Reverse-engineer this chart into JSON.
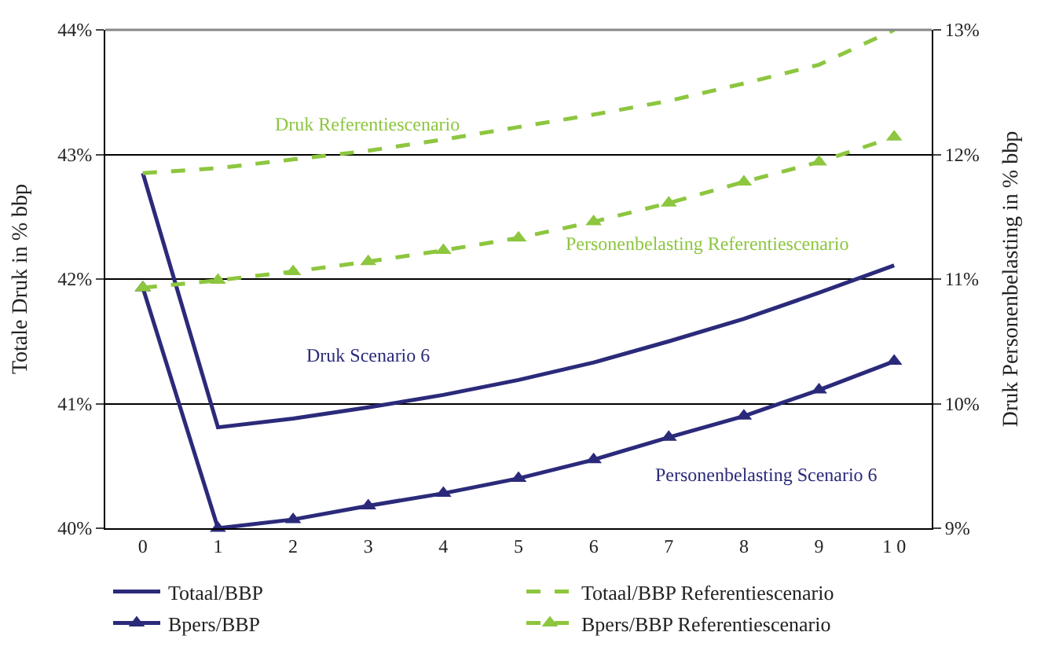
{
  "chart_data": {
    "type": "line",
    "xlabel": null,
    "ylabel": "Totale Druk in % bbp",
    "y2label": "Druk Personenbelasting in % bbp",
    "categories": [
      "0",
      "1",
      "2",
      "3",
      "4",
      "5",
      "6",
      "7",
      "8",
      "9",
      "1 0"
    ],
    "series": [
      {
        "name": "Totaal/BBP",
        "color": "#2b2a7a",
        "line_style": "solid",
        "marker": "none",
        "values": [
          42.85,
          40.81,
          40.88,
          40.97,
          41.07,
          41.19,
          41.33,
          41.5,
          41.68,
          41.89,
          42.11
        ]
      },
      {
        "name": "Totaal/BBP Referentiescenario",
        "color": "#8dc63f",
        "line_style": "dashed",
        "marker": "none",
        "values": [
          42.85,
          42.89,
          42.96,
          43.03,
          43.12,
          43.22,
          43.32,
          43.43,
          43.57,
          43.72,
          44.0
        ]
      },
      {
        "name": "Bpers/BBP",
        "color": "#2b2a7a",
        "line_style": "solid",
        "marker": "triangle",
        "axis": "y2",
        "values": [
          10.93,
          9.0,
          9.07,
          9.18,
          9.28,
          9.4,
          9.55,
          9.73,
          9.9,
          10.11,
          10.34
        ]
      },
      {
        "name": "Bpers/BBP Referentiescenario",
        "color": "#8dc63f",
        "line_style": "dashed",
        "marker": "triangle",
        "axis": "y2",
        "values": [
          10.93,
          10.99,
          11.06,
          11.14,
          11.23,
          11.33,
          11.46,
          11.61,
          11.78,
          11.94,
          12.14
        ]
      }
    ],
    "ylim": [
      40,
      44
    ],
    "yticks": [
      {
        "value": 40,
        "label": "40%"
      },
      {
        "value": 41,
        "label": "41%"
      },
      {
        "value": 42,
        "label": "42%"
      },
      {
        "value": 43,
        "label": "43%"
      },
      {
        "value": 44,
        "label": "44%"
      }
    ],
    "y2lim": [
      9,
      13
    ],
    "y2ticks": [
      {
        "value": 9,
        "label": "9%"
      },
      {
        "value": 10,
        "label": "10%"
      },
      {
        "value": 11,
        "label": "11%"
      },
      {
        "value": 12,
        "label": "12%"
      },
      {
        "value": 13,
        "label": "13%"
      }
    ],
    "grid": "y",
    "legend": "bottom",
    "annotations": [
      "Druk Referentiescenario",
      "Personenbelasting Referentiescenario",
      "Druk Scenario 6",
      "Personenbelasting Scenario 6"
    ]
  }
}
